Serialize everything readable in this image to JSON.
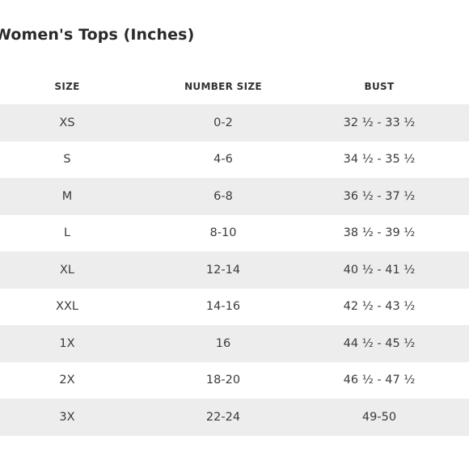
{
  "title": "Women's Tops (Inches)",
  "columns": [
    "SIZE",
    "NUMBER SIZE",
    "BUST"
  ],
  "rows": [
    [
      "XS",
      "0-2",
      "32 ½ - 33 ½"
    ],
    [
      "S",
      "4-6",
      "34 ½ - 35 ½"
    ],
    [
      "M",
      "6-8",
      "36 ½ - 37 ½"
    ],
    [
      "L",
      "8-10",
      "38 ½ - 39 ½"
    ],
    [
      "XL",
      "12-14",
      "40 ½ - 41 ½"
    ],
    [
      "XXL",
      "14-16",
      "42 ½ - 43 ½"
    ],
    [
      "1X",
      "16",
      "44 ½ - 45 ½"
    ],
    [
      "2X",
      "18-20",
      "46 ½ - 47 ½"
    ],
    [
      "3X",
      "22-24",
      "49-50"
    ]
  ],
  "colors": {
    "shaded_row": "#ededed",
    "background": "#ffffff"
  }
}
